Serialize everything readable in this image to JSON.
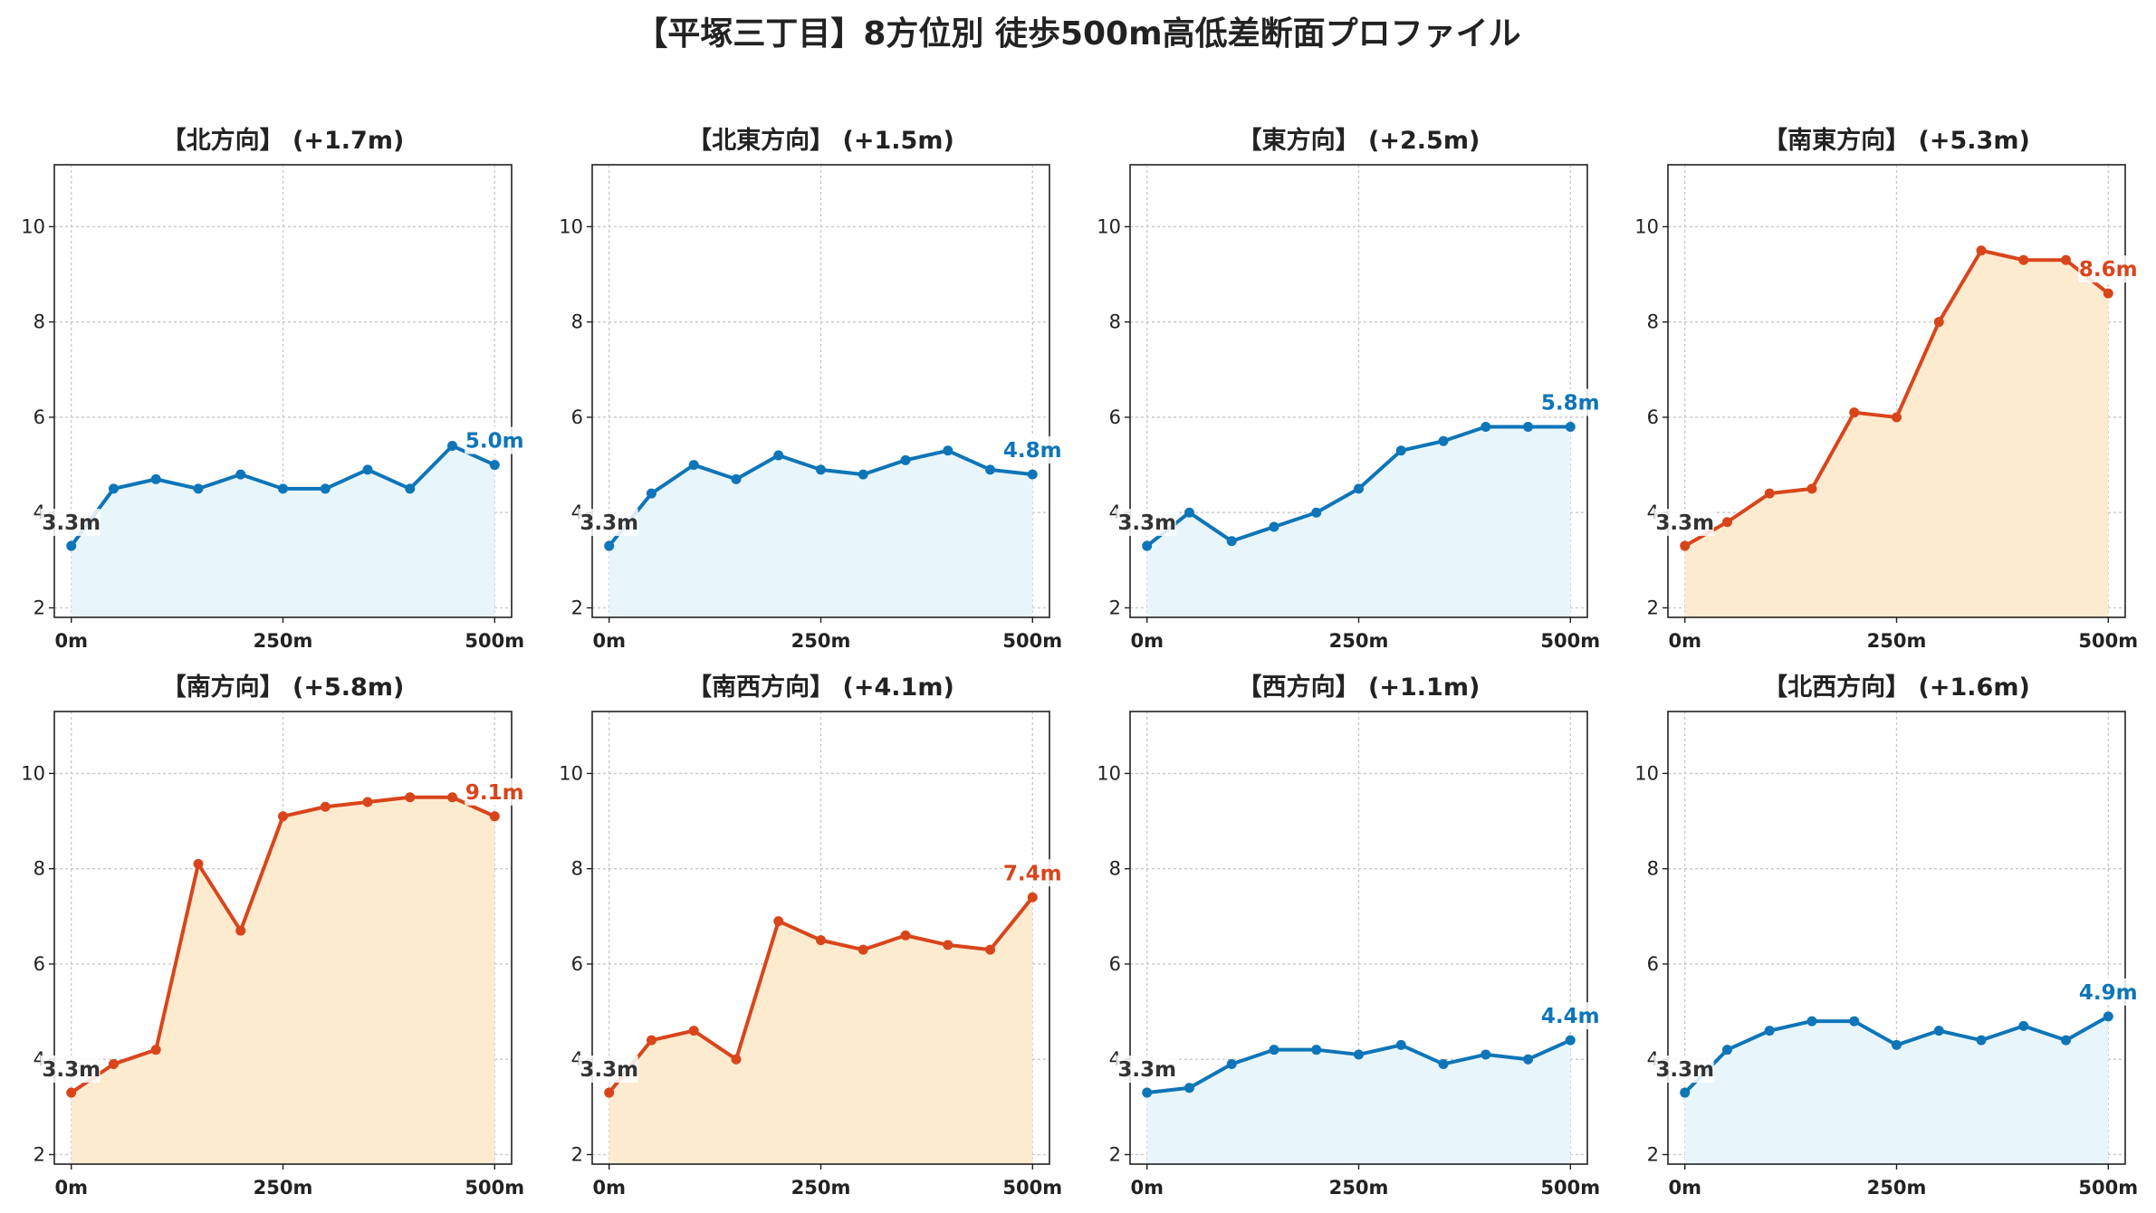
{
  "title": "【平塚三丁目】8方位別 徒歩500m高低差断面プロファイル",
  "colors": {
    "low": "#0e75b8",
    "low_fill": "#e8f6fc",
    "high": "#d9451b",
    "high_fill": "#fdebd0",
    "grid": "#c8c8c8",
    "text": "#222222"
  },
  "chart_data": [
    {
      "type": "area",
      "title": "【北方向】 (+1.7m)",
      "color_scheme": "low",
      "x": [
        0,
        50,
        100,
        150,
        200,
        250,
        300,
        350,
        400,
        450,
        500
      ],
      "values": [
        3.3,
        4.5,
        4.7,
        4.5,
        4.8,
        4.5,
        4.5,
        4.9,
        4.5,
        5.4,
        5.0
      ],
      "start_label": "3.3m",
      "end_label": "5.0m",
      "xticks": [
        0,
        250,
        500
      ],
      "xtick_labels": [
        "0m",
        "250m",
        "500m"
      ],
      "yticks": [
        2,
        4,
        6,
        8,
        10
      ],
      "ylim": [
        1.8,
        11.3
      ],
      "xlim": [
        -20,
        520
      ],
      "grid": true
    },
    {
      "type": "area",
      "title": "【北東方向】 (+1.5m)",
      "color_scheme": "low",
      "x": [
        0,
        50,
        100,
        150,
        200,
        250,
        300,
        350,
        400,
        450,
        500
      ],
      "values": [
        3.3,
        4.4,
        5.0,
        4.7,
        5.2,
        4.9,
        4.8,
        5.1,
        5.3,
        4.9,
        4.8
      ],
      "start_label": "3.3m",
      "end_label": "4.8m",
      "xticks": [
        0,
        250,
        500
      ],
      "xtick_labels": [
        "0m",
        "250m",
        "500m"
      ],
      "yticks": [
        2,
        4,
        6,
        8,
        10
      ],
      "ylim": [
        1.8,
        11.3
      ],
      "xlim": [
        -20,
        520
      ],
      "grid": true
    },
    {
      "type": "area",
      "title": "【東方向】 (+2.5m)",
      "color_scheme": "low",
      "x": [
        0,
        50,
        100,
        150,
        200,
        250,
        300,
        350,
        400,
        450,
        500
      ],
      "values": [
        3.3,
        4.0,
        3.4,
        3.7,
        4.0,
        4.5,
        5.3,
        5.5,
        5.8,
        5.8,
        5.8
      ],
      "start_label": "3.3m",
      "end_label": "5.8m",
      "xticks": [
        0,
        250,
        500
      ],
      "xtick_labels": [
        "0m",
        "250m",
        "500m"
      ],
      "yticks": [
        2,
        4,
        6,
        8,
        10
      ],
      "ylim": [
        1.8,
        11.3
      ],
      "xlim": [
        -20,
        520
      ],
      "grid": true
    },
    {
      "type": "area",
      "title": "【南東方向】 (+5.3m)",
      "color_scheme": "high",
      "x": [
        0,
        50,
        100,
        150,
        200,
        250,
        300,
        350,
        400,
        450,
        500
      ],
      "values": [
        3.3,
        3.8,
        4.4,
        4.5,
        6.1,
        6.0,
        8.0,
        9.5,
        9.3,
        9.3,
        8.6
      ],
      "start_label": "3.3m",
      "end_label": "8.6m",
      "xticks": [
        0,
        250,
        500
      ],
      "xtick_labels": [
        "0m",
        "250m",
        "500m"
      ],
      "yticks": [
        2,
        4,
        6,
        8,
        10
      ],
      "ylim": [
        1.8,
        11.3
      ],
      "xlim": [
        -20,
        520
      ],
      "grid": true
    },
    {
      "type": "area",
      "title": "【南方向】 (+5.8m)",
      "color_scheme": "high",
      "x": [
        0,
        50,
        100,
        150,
        200,
        250,
        300,
        350,
        400,
        450,
        500
      ],
      "values": [
        3.3,
        3.9,
        4.2,
        8.1,
        6.7,
        9.1,
        9.3,
        9.4,
        9.5,
        9.5,
        9.1
      ],
      "start_label": "3.3m",
      "end_label": "9.1m",
      "xticks": [
        0,
        250,
        500
      ],
      "xtick_labels": [
        "0m",
        "250m",
        "500m"
      ],
      "yticks": [
        2,
        4,
        6,
        8,
        10
      ],
      "ylim": [
        1.8,
        11.3
      ],
      "xlim": [
        -20,
        520
      ],
      "grid": true
    },
    {
      "type": "area",
      "title": "【南西方向】 (+4.1m)",
      "color_scheme": "high",
      "x": [
        0,
        50,
        100,
        150,
        200,
        250,
        300,
        350,
        400,
        450,
        500
      ],
      "values": [
        3.3,
        4.4,
        4.6,
        4.0,
        6.9,
        6.5,
        6.3,
        6.6,
        6.4,
        6.3,
        7.4
      ],
      "start_label": "3.3m",
      "end_label": "7.4m",
      "xticks": [
        0,
        250,
        500
      ],
      "xtick_labels": [
        "0m",
        "250m",
        "500m"
      ],
      "yticks": [
        2,
        4,
        6,
        8,
        10
      ],
      "ylim": [
        1.8,
        11.3
      ],
      "xlim": [
        -20,
        520
      ],
      "grid": true
    },
    {
      "type": "area",
      "title": "【西方向】 (+1.1m)",
      "color_scheme": "low",
      "x": [
        0,
        50,
        100,
        150,
        200,
        250,
        300,
        350,
        400,
        450,
        500
      ],
      "values": [
        3.3,
        3.4,
        3.9,
        4.2,
        4.2,
        4.1,
        4.3,
        3.9,
        4.1,
        4.0,
        4.4
      ],
      "start_label": "3.3m",
      "end_label": "4.4m",
      "xticks": [
        0,
        250,
        500
      ],
      "xtick_labels": [
        "0m",
        "250m",
        "500m"
      ],
      "yticks": [
        2,
        4,
        6,
        8,
        10
      ],
      "ylim": [
        1.8,
        11.3
      ],
      "xlim": [
        -20,
        520
      ],
      "grid": true
    },
    {
      "type": "area",
      "title": "【北西方向】 (+1.6m)",
      "color_scheme": "low",
      "x": [
        0,
        50,
        100,
        150,
        200,
        250,
        300,
        350,
        400,
        450,
        500
      ],
      "values": [
        3.3,
        4.2,
        4.6,
        4.8,
        4.8,
        4.3,
        4.6,
        4.4,
        4.7,
        4.4,
        4.9
      ],
      "start_label": "3.3m",
      "end_label": "4.9m",
      "xticks": [
        0,
        250,
        500
      ],
      "xtick_labels": [
        "0m",
        "250m",
        "500m"
      ],
      "yticks": [
        2,
        4,
        6,
        8,
        10
      ],
      "ylim": [
        1.8,
        11.3
      ],
      "xlim": [
        -20,
        520
      ],
      "grid": true
    }
  ]
}
